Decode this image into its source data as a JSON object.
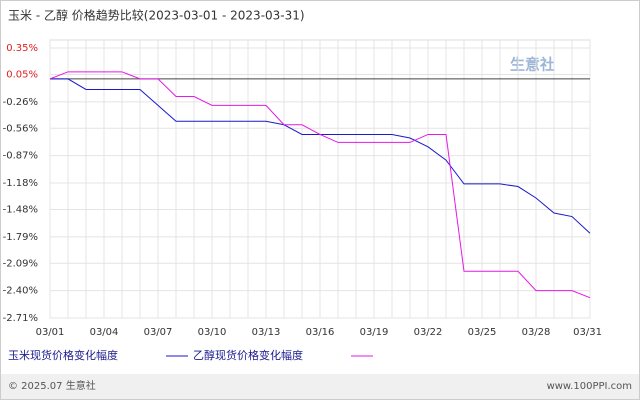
{
  "chart_data": {
    "type": "line",
    "title": "玉米 - 乙醇 价格趋势比较(2023-03-01 - 2023-03-31)",
    "categories": [
      "03/01",
      null,
      null,
      "03/04",
      null,
      null,
      "03/07",
      null,
      null,
      "03/10",
      null,
      null,
      "03/13",
      null,
      null,
      "03/16",
      null,
      null,
      "03/19",
      null,
      null,
      "03/22",
      null,
      null,
      "03/25",
      null,
      null,
      "03/28",
      null,
      null,
      "03/31"
    ],
    "series": [
      {
        "name": "玉米现货价格变化幅度",
        "color": "#1a1acc",
        "values": [
          0,
          0,
          -0.12,
          -0.12,
          -0.12,
          -0.12,
          -0.3,
          -0.48,
          -0.48,
          -0.48,
          -0.48,
          -0.48,
          -0.48,
          -0.52,
          -0.63,
          -0.63,
          -0.63,
          -0.63,
          -0.63,
          -0.63,
          -0.67,
          -0.77,
          -0.92,
          -1.19,
          -1.19,
          -1.19,
          -1.22,
          -1.35,
          -1.52,
          -1.56,
          -1.75
        ]
      },
      {
        "name": "乙醇现货价格变化幅度",
        "color": "#e619e6",
        "values": [
          0,
          0.08,
          0.08,
          0.08,
          0.08,
          0,
          0,
          -0.2,
          -0.2,
          -0.3,
          -0.3,
          -0.3,
          -0.3,
          -0.52,
          -0.52,
          -0.63,
          -0.72,
          -0.72,
          -0.72,
          -0.72,
          -0.72,
          -0.63,
          -0.63,
          -2.18,
          -2.18,
          -2.18,
          -2.18,
          -2.4,
          -2.4,
          -2.4,
          -2.48
        ]
      }
    ],
    "ylim": [
      -2.71,
      0.35
    ],
    "yticks": [
      {
        "value": 0.35,
        "label": "0.35%"
      },
      {
        "value": 0.05,
        "label": "0.05%"
      },
      {
        "value": -0.26,
        "label": "-0.26%"
      },
      {
        "value": -0.56,
        "label": "-0.56%"
      },
      {
        "value": -0.87,
        "label": "-0.87%"
      },
      {
        "value": -1.18,
        "label": "-1.18%"
      },
      {
        "value": -1.48,
        "label": "-1.48%"
      },
      {
        "value": -1.79,
        "label": "-1.79%"
      },
      {
        "value": -2.09,
        "label": "-2.09%"
      },
      {
        "value": -2.4,
        "label": "-2.40%"
      },
      {
        "value": -2.71,
        "label": "-2.71%"
      }
    ],
    "grid": true,
    "watermark": "生意社",
    "footer_left": "© 2025.07 生意社",
    "footer_right": "www.100PPI.com"
  }
}
